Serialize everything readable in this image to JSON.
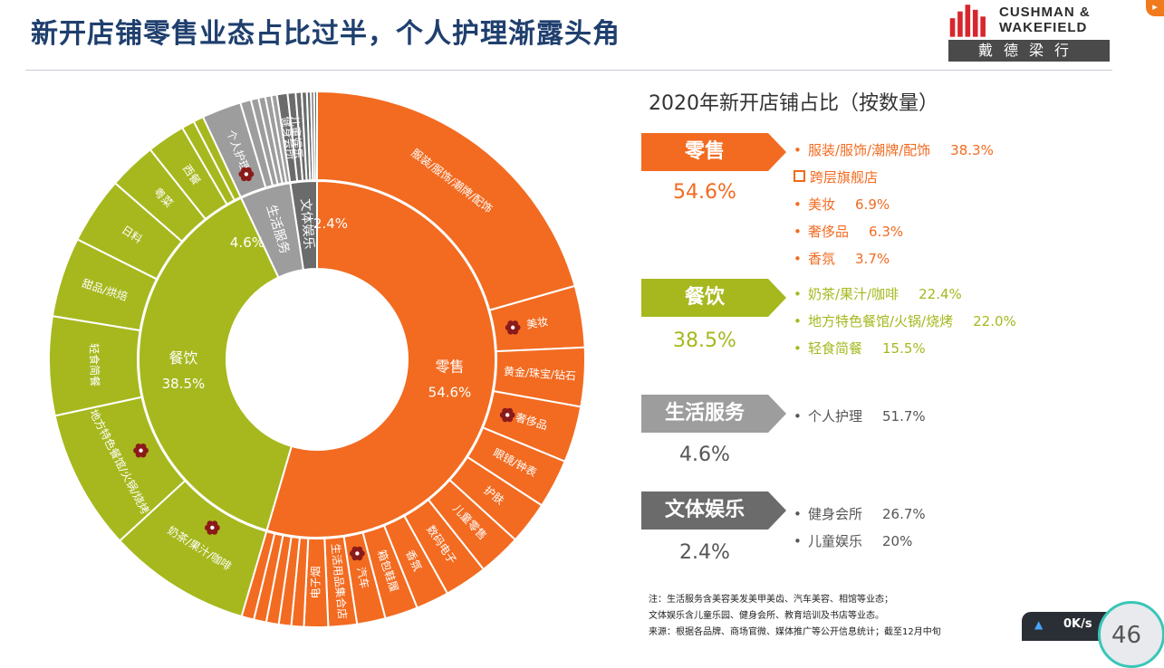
{
  "header": {
    "title": "新开店铺零售业态占比过半，个人护理渐露头角",
    "logo_en_line1": "CUSHMAN &",
    "logo_en_line2": "WAKEFIELD",
    "logo_cn": "戴德梁行"
  },
  "colors": {
    "retail": "#f26b21",
    "dining": "#a6b81e",
    "life": "#9d9d9d",
    "culture": "#6b6b6b",
    "title": "#1f3f6e"
  },
  "chart_data": {
    "type": "sunburst",
    "inner": [
      {
        "name": "零售",
        "value": 54.6,
        "label": "54.6%"
      },
      {
        "name": "餐饮",
        "value": 38.5,
        "label": "38.5%"
      },
      {
        "name": "生活服务",
        "value": 4.6,
        "label": "4.6%"
      },
      {
        "name": "文体娱乐",
        "value": 2.4,
        "label": "2.4%"
      }
    ],
    "outer": [
      {
        "parent": "零售",
        "name": "服装/服饰/潮牌/配饰",
        "value": 38.3
      },
      {
        "parent": "零售",
        "name": "美妆",
        "value": 6.9,
        "flag": true
      },
      {
        "parent": "零售",
        "name": "黄金/珠宝/钻石",
        "value": 6.6
      },
      {
        "parent": "零售",
        "name": "奢侈品",
        "value": 6.3,
        "flag": true
      },
      {
        "parent": "零售",
        "name": "眼镜/钟表",
        "value": 5.5
      },
      {
        "parent": "零售",
        "name": "护肤",
        "value": 4.8
      },
      {
        "parent": "零售",
        "name": "儿童零售",
        "value": 4.8
      },
      {
        "parent": "零售",
        "name": "数码电子",
        "value": 4.8
      },
      {
        "parent": "零售",
        "name": "香氛",
        "value": 3.7
      },
      {
        "parent": "零售",
        "name": "箱包鞋履",
        "value": 3.7
      },
      {
        "parent": "零售",
        "name": "汽车",
        "value": 3.2,
        "flag": true
      },
      {
        "parent": "零售",
        "name": "生活用品集合店",
        "value": 3.2
      },
      {
        "parent": "零售",
        "name": "电子烟",
        "value": 2.7
      },
      {
        "parent": "零售",
        "name": "",
        "value": 1.4
      },
      {
        "parent": "零售",
        "name": "",
        "value": 1.4
      },
      {
        "parent": "零售",
        "name": "",
        "value": 1.4
      },
      {
        "parent": "零售",
        "name": "",
        "value": 1.4
      },
      {
        "parent": "零售",
        "name": "",
        "value": 1.4
      },
      {
        "parent": "餐饮",
        "name": "奶茶/果汁/咖啡",
        "value": 22.4,
        "flag": true
      },
      {
        "parent": "餐饮",
        "name": "地方特色餐馆/火锅/烧烤",
        "value": 22.0,
        "flag": true
      },
      {
        "parent": "餐饮",
        "name": "轻食简餐",
        "value": 15.5
      },
      {
        "parent": "餐饮",
        "name": "甜品/烘焙",
        "value": 12.5
      },
      {
        "parent": "餐饮",
        "name": "日料",
        "value": 10.5
      },
      {
        "parent": "餐饮",
        "name": "粤菜",
        "value": 7.5
      },
      {
        "parent": "餐饮",
        "name": "西餐",
        "value": 6.0
      },
      {
        "parent": "餐饮",
        "name": "",
        "value": 2.0
      },
      {
        "parent": "餐饮",
        "name": "",
        "value": 1.6
      },
      {
        "parent": "生活服务",
        "name": "个人护理",
        "value": 51.7,
        "flag": true
      },
      {
        "parent": "生活服务",
        "name": "",
        "value": 14
      },
      {
        "parent": "生活服务",
        "name": "",
        "value": 10
      },
      {
        "parent": "生活服务",
        "name": "",
        "value": 9
      },
      {
        "parent": "生活服务",
        "name": "",
        "value": 8
      },
      {
        "parent": "生活服务",
        "name": "",
        "value": 7.3
      },
      {
        "parent": "文体娱乐",
        "name": "健身会所",
        "value": 26.7
      },
      {
        "parent": "文体娱乐",
        "name": "儿童娱乐",
        "value": 20
      },
      {
        "parent": "文体娱乐",
        "name": "",
        "value": 15
      },
      {
        "parent": "文体娱乐",
        "name": "",
        "value": 13
      },
      {
        "parent": "文体娱乐",
        "name": "",
        "value": 10
      },
      {
        "parent": "文体娱乐",
        "name": "",
        "value": 8
      },
      {
        "parent": "文体娱乐",
        "name": "",
        "value": 7.3
      }
    ]
  },
  "panel": {
    "title": "2020年新开店铺占比（按数量）",
    "categories": [
      {
        "key": "retail",
        "name": "零售",
        "pct": "54.6%",
        "items": [
          {
            "bullet": "•",
            "text": "服装/服饰/潮牌/配饰",
            "value": "38.3%"
          },
          {
            "bullet": "square",
            "text": "跨层旗舰店",
            "value": ""
          },
          {
            "bullet": "•",
            "text": "美妆",
            "value": "6.9%"
          },
          {
            "bullet": "•",
            "text": "奢侈品",
            "value": "6.3%"
          },
          {
            "bullet": "•",
            "text": "香氛",
            "value": "3.7%"
          }
        ]
      },
      {
        "key": "dining",
        "name": "餐饮",
        "pct": "38.5%",
        "items": [
          {
            "bullet": "•",
            "text": "奶茶/果汁/咖啡",
            "value": "22.4%"
          },
          {
            "bullet": "•",
            "text": "地方特色餐馆/火锅/烧烤",
            "value": "22.0%"
          },
          {
            "bullet": "•",
            "text": "轻食简餐",
            "value": "15.5%"
          }
        ]
      },
      {
        "key": "life",
        "name": "生活服务",
        "pct": "4.6%",
        "items": [
          {
            "bullet": "•",
            "text": "个人护理",
            "value": "51.7%"
          }
        ]
      },
      {
        "key": "culture",
        "name": "文体娱乐",
        "pct": "2.4%",
        "items": [
          {
            "bullet": "•",
            "text": "健身会所",
            "value": "26.7%"
          },
          {
            "bullet": "•",
            "text": "儿童娱乐",
            "value": "20%"
          }
        ]
      }
    ]
  },
  "notes": [
    "注：生活服务含美容美发美甲美齿、汽车美容、相馆等业态；",
    "文体娱乐含儿童乐园、健身会所、教育培训及书店等业态。",
    "来源：根据各品牌、商场官微、媒体推广等公开信息统计；截至12月中旬"
  ],
  "widget": {
    "speed": "0K/s",
    "number": "46"
  }
}
